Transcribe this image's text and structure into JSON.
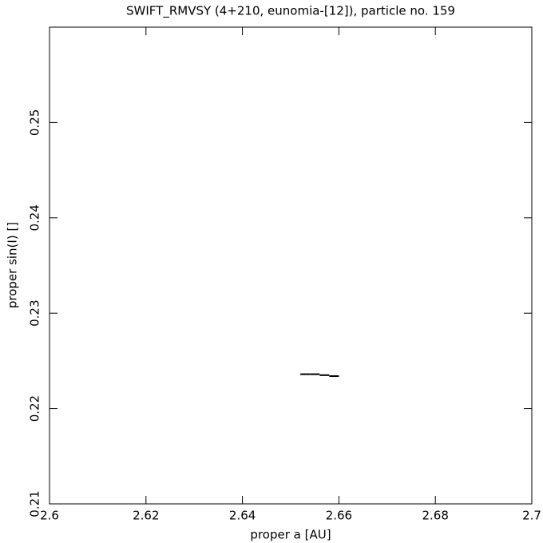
{
  "chart_data": {
    "type": "scatter",
    "title": "SWIFT_RMVSY (4+210, eunomia-[12]), particle no. 159",
    "x_label": "proper a [AU]",
    "y_label": "proper sin(I) []",
    "x": [
      2.653,
      2.655,
      2.657,
      2.659
    ],
    "values": [
      0.2236,
      0.2236,
      0.2235,
      0.2234
    ],
    "color": "#000000",
    "xlim": [
      2.6,
      2.7
    ],
    "xticks": [
      2.6,
      2.62,
      2.64,
      2.66,
      2.68,
      2.7
    ],
    "ylim": [
      0.21,
      0.26
    ],
    "yticks": [
      0.21,
      0.22,
      0.23,
      0.24,
      0.25
    ],
    "grid": false
  }
}
